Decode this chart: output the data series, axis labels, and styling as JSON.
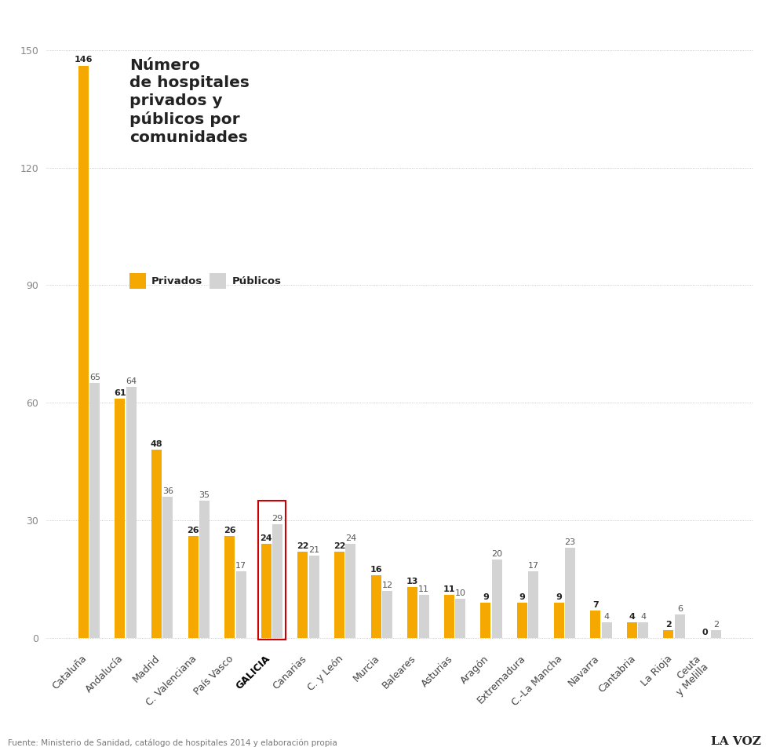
{
  "categories": [
    "Cataluña",
    "Andalucía",
    "Madrid",
    "C. Valenciana",
    "País Vasco",
    "GALICIA",
    "Canarias",
    "C. y León",
    "Murcia",
    "Baleares",
    "Asturias",
    "Aragón",
    "Extremadura",
    "C.-La Mancha",
    "Navarra",
    "Cantabria",
    "La Rioja",
    "Ceuta\ny Melilla"
  ],
  "privados": [
    146,
    61,
    48,
    26,
    26,
    24,
    22,
    22,
    16,
    13,
    11,
    9,
    9,
    9,
    7,
    4,
    2,
    0
  ],
  "publicos": [
    65,
    64,
    36,
    35,
    17,
    29,
    21,
    24,
    12,
    11,
    10,
    20,
    17,
    23,
    4,
    4,
    6,
    2
  ],
  "color_privados": "#F5A800",
  "color_publicos": "#D3D3D3",
  "highlight_index": 5,
  "highlight_color": "#CC0000",
  "title": "Número\nde hospitales\nprivados y\npúblicos por\ncomunidades",
  "legend_privados": "Privados",
  "legend_publicos": "Públicos",
  "ylabel_ticks": [
    0,
    30,
    60,
    90,
    120,
    150
  ],
  "source_text": "Fuente: Ministerio de Sanidad, catálogo de hospitales 2014 y elaboración propia",
  "logo_text": "LA VOZ",
  "background_color": "#FFFFFF"
}
